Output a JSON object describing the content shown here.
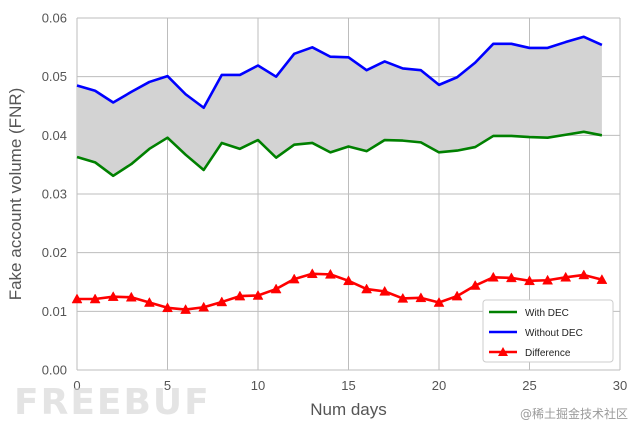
{
  "chart_data": {
    "type": "line",
    "title": "",
    "xlabel": "Num days",
    "ylabel": "Fake account volume (FNR)",
    "xlim": [
      0,
      30
    ],
    "ylim": [
      0,
      0.06
    ],
    "xticks": [
      0,
      5,
      10,
      15,
      20,
      25,
      30
    ],
    "xtick_labels": [
      "0",
      "5",
      "10",
      "15",
      "20",
      "25",
      "30"
    ],
    "yticks": [
      0,
      0.01,
      0.02,
      0.03,
      0.04,
      0.05,
      0.06
    ],
    "ytick_labels": [
      "0.00",
      "0.01",
      "0.02",
      "0.03",
      "0.04",
      "0.05",
      "0.06"
    ],
    "grid": true,
    "legend_position": "lower-right",
    "fill_between": {
      "lower": "With DEC",
      "upper": "Without DEC",
      "color": "#d3d3d3"
    },
    "x": [
      0,
      1,
      2,
      3,
      4,
      5,
      6,
      7,
      8,
      9,
      10,
      11,
      12,
      13,
      14,
      15,
      16,
      17,
      18,
      19,
      20,
      21,
      22,
      23,
      24,
      25,
      26,
      27,
      28,
      29
    ],
    "series": [
      {
        "name": "With DEC",
        "color": "#008000",
        "marker": "none",
        "values": [
          0.0363,
          0.0354,
          0.0331,
          0.0351,
          0.0377,
          0.0396,
          0.0367,
          0.0341,
          0.0387,
          0.0377,
          0.0392,
          0.0362,
          0.0384,
          0.0387,
          0.0371,
          0.0381,
          0.0373,
          0.0392,
          0.0391,
          0.0388,
          0.0371,
          0.0374,
          0.038,
          0.0399,
          0.0399,
          0.0397,
          0.0396,
          0.0401,
          0.0406,
          0.04
        ]
      },
      {
        "name": "Without DEC",
        "color": "#0000ff",
        "marker": "none",
        "values": [
          0.0485,
          0.0476,
          0.0456,
          0.0474,
          0.0491,
          0.0501,
          0.047,
          0.0447,
          0.0503,
          0.0503,
          0.0519,
          0.05,
          0.0539,
          0.055,
          0.0534,
          0.0533,
          0.0511,
          0.0526,
          0.0514,
          0.0511,
          0.0486,
          0.0499,
          0.0524,
          0.0556,
          0.0556,
          0.0549,
          0.0549,
          0.0559,
          0.0568,
          0.0554
        ]
      },
      {
        "name": "Difference",
        "color": "#ff0000",
        "marker": "triangle",
        "values": [
          0.0121,
          0.0121,
          0.0125,
          0.0124,
          0.0115,
          0.0106,
          0.0103,
          0.0107,
          0.0116,
          0.0126,
          0.0127,
          0.0138,
          0.0155,
          0.0164,
          0.0163,
          0.0152,
          0.0138,
          0.0134,
          0.0122,
          0.0123,
          0.0115,
          0.0126,
          0.0144,
          0.0158,
          0.0157,
          0.0152,
          0.0153,
          0.0158,
          0.0162,
          0.0154
        ]
      }
    ]
  },
  "watermark": {
    "logo_text": "FREEBUF",
    "credit": "@稀土掘金技术社区"
  }
}
